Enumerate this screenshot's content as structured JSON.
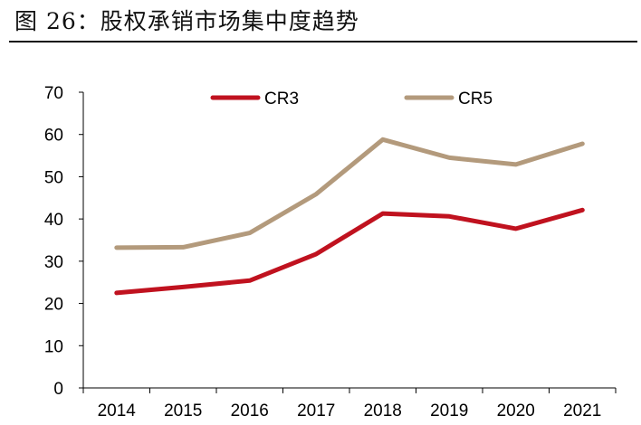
{
  "figure": {
    "title": "图 26：股权承销市场集中度趋势"
  },
  "chart_data": {
    "type": "line",
    "title": "股权承销市场集中度趋势",
    "xlabel": "",
    "ylabel": "",
    "categories": [
      "2014",
      "2015",
      "2016",
      "2017",
      "2018",
      "2019",
      "2020",
      "2021"
    ],
    "ylim": [
      0,
      70
    ],
    "yticks": [
      0,
      10,
      20,
      30,
      40,
      50,
      60,
      70
    ],
    "grid": false,
    "legend_position": "top",
    "series": [
      {
        "name": "CR3",
        "color": "#c0121f",
        "values": [
          22.5,
          23.9,
          25.4,
          31.7,
          41.3,
          40.6,
          37.7,
          42.1
        ]
      },
      {
        "name": "CR5",
        "color": "#b39a7c",
        "values": [
          33.2,
          33.3,
          36.7,
          45.9,
          58.8,
          54.5,
          52.9,
          57.8
        ]
      }
    ]
  }
}
